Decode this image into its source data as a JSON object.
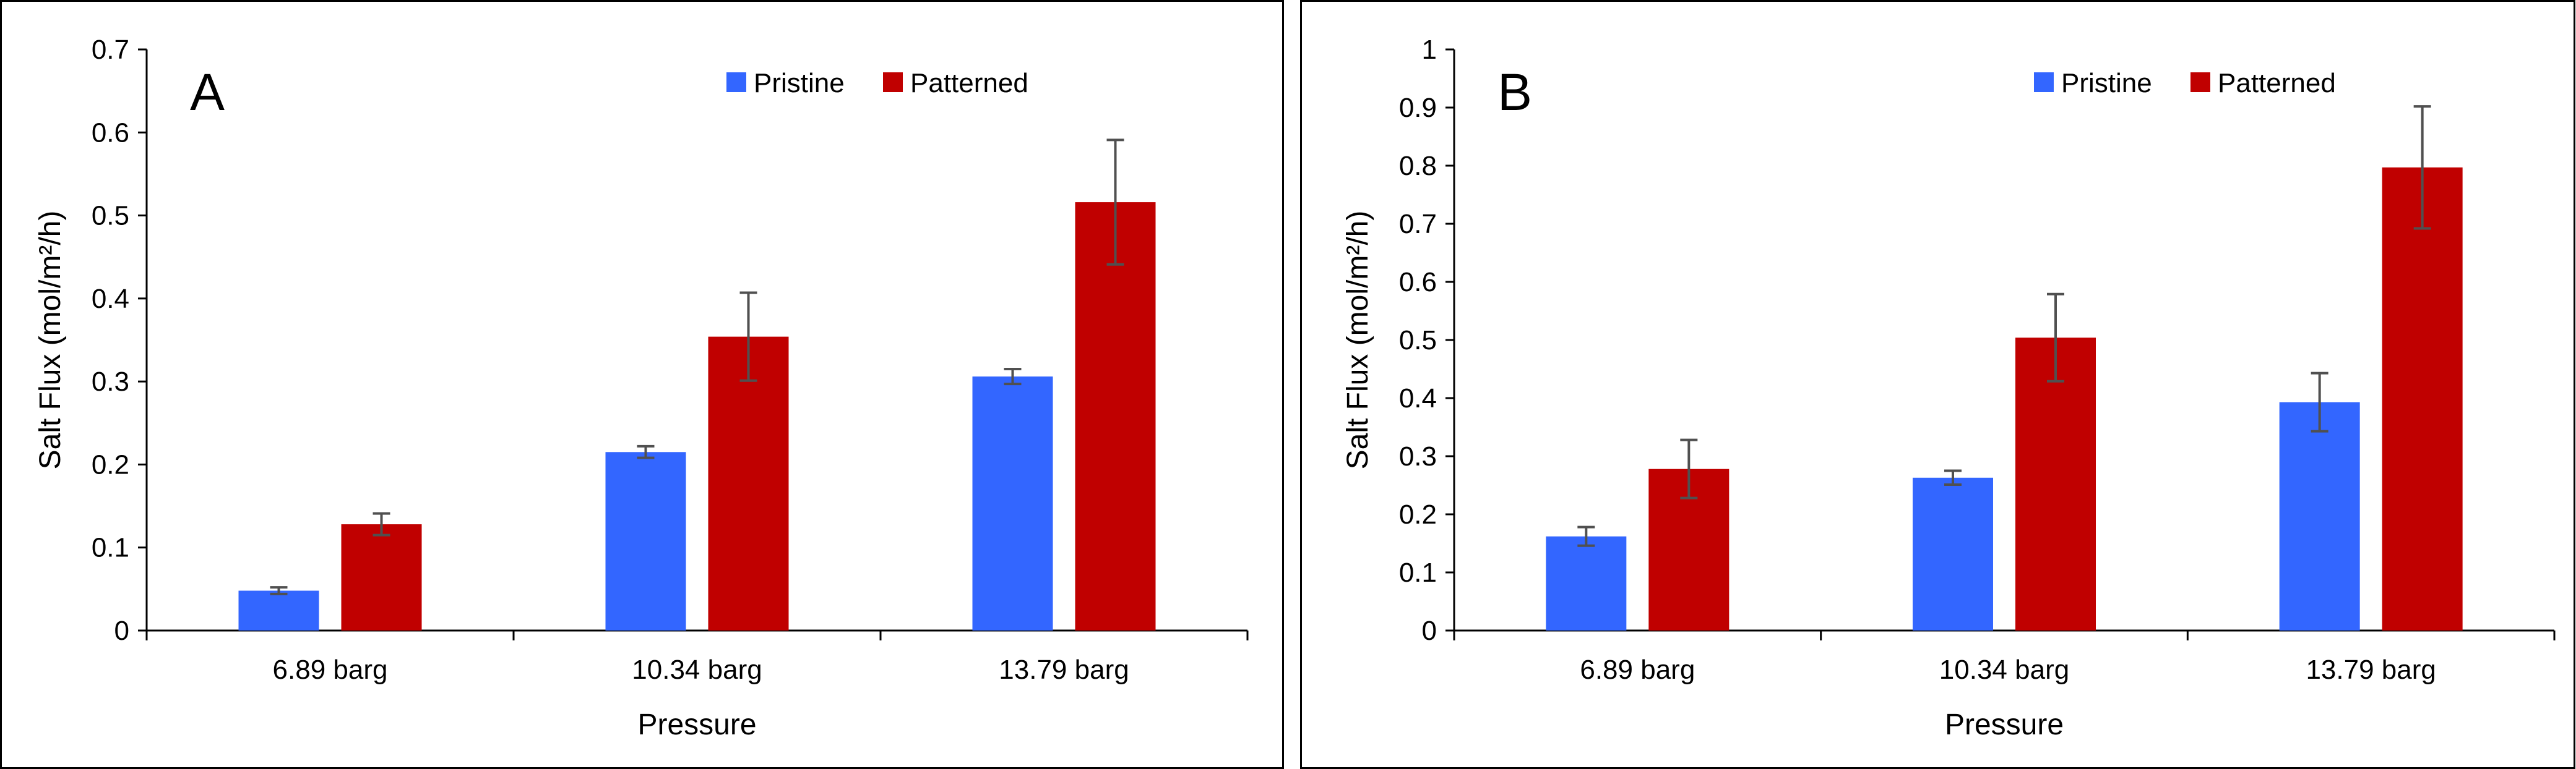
{
  "chart_data": [
    {
      "type": "bar",
      "panel_label": "A",
      "categories": [
        "6.89 barg",
        "10.34 barg",
        "13.79 barg"
      ],
      "series": [
        {
          "name": "Pristine",
          "color": "#3366FF",
          "values": [
            0.048,
            0.215,
            0.306
          ],
          "errors": [
            0.004,
            0.007,
            0.009
          ]
        },
        {
          "name": "Patterned",
          "color": "#C00000",
          "values": [
            0.128,
            0.354,
            0.516
          ],
          "errors": [
            0.013,
            0.053,
            0.075
          ]
        }
      ],
      "xlabel": "Pressure",
      "ylabel": "Salt Flux (mol/m²/h)",
      "ylim": [
        0,
        0.7
      ],
      "yticks": [
        "0",
        "0.1",
        "0.2",
        "0.3",
        "0.4",
        "0.5",
        "0.6",
        "0.7"
      ],
      "grid": false,
      "legend_position": "top-right"
    },
    {
      "type": "bar",
      "panel_label": "B",
      "categories": [
        "6.89 barg",
        "10.34 barg",
        "13.79 barg"
      ],
      "series": [
        {
          "name": "Pristine",
          "color": "#3366FF",
          "values": [
            0.162,
            0.263,
            0.393
          ],
          "errors": [
            0.016,
            0.012,
            0.05
          ]
        },
        {
          "name": "Patterned",
          "color": "#C00000",
          "values": [
            0.278,
            0.504,
            0.797
          ],
          "errors": [
            0.05,
            0.075,
            0.105
          ]
        }
      ],
      "xlabel": "Pressure",
      "ylabel": "Salt Flux (mol/m²/h)",
      "ylim": [
        0,
        1
      ],
      "yticks": [
        "0",
        "0.1",
        "0.2",
        "0.3",
        "0.4",
        "0.5",
        "0.6",
        "0.7",
        "0.8",
        "0.9",
        "1"
      ],
      "grid": false,
      "legend_position": "top-right"
    }
  ]
}
